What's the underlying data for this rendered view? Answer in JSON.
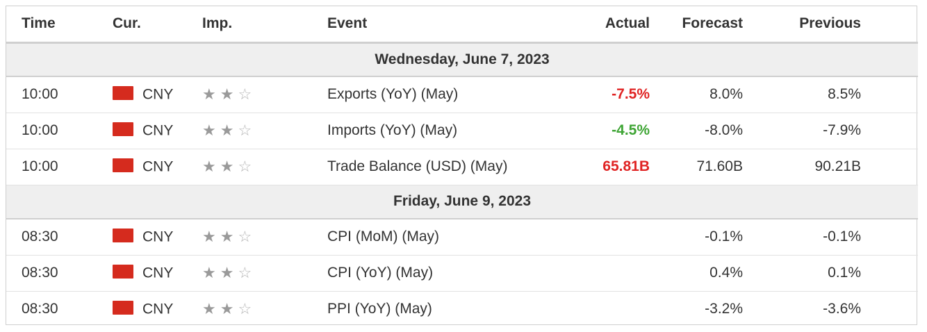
{
  "headers": {
    "time": "Time",
    "cur": "Cur.",
    "imp": "Imp.",
    "event": "Event",
    "actual": "Actual",
    "forecast": "Forecast",
    "previous": "Previous"
  },
  "groups": [
    {
      "date": "Wednesday, June 7, 2023",
      "events": [
        {
          "time": "10:00",
          "currency": "CNY",
          "importance": 2,
          "event": "Exports (YoY) (May)",
          "actual": "-7.5%",
          "actual_status": "negative",
          "forecast": "8.0%",
          "previous": "8.5%"
        },
        {
          "time": "10:00",
          "currency": "CNY",
          "importance": 2,
          "event": "Imports (YoY) (May)",
          "actual": "-4.5%",
          "actual_status": "positive",
          "forecast": "-8.0%",
          "previous": "-7.9%"
        },
        {
          "time": "10:00",
          "currency": "CNY",
          "importance": 2,
          "event": "Trade Balance (USD) (May)",
          "actual": "65.81B",
          "actual_status": "negative",
          "forecast": "71.60B",
          "previous": "90.21B"
        }
      ]
    },
    {
      "date": "Friday, June 9, 2023",
      "events": [
        {
          "time": "08:30",
          "currency": "CNY",
          "importance": 2,
          "event": "CPI (MoM) (May)",
          "actual": "",
          "actual_status": "none",
          "forecast": "-0.1%",
          "previous": "-0.1%"
        },
        {
          "time": "08:30",
          "currency": "CNY",
          "importance": 2,
          "event": "CPI (YoY) (May)",
          "actual": "",
          "actual_status": "none",
          "forecast": "0.4%",
          "previous": "0.1%"
        },
        {
          "time": "08:30",
          "currency": "CNY",
          "importance": 2,
          "event": "PPI (YoY) (May)",
          "actual": "",
          "actual_status": "none",
          "forecast": "-3.2%",
          "previous": "-3.6%"
        }
      ]
    }
  ],
  "colors": {
    "negative": "#e02424",
    "positive": "#3fa535",
    "flag_cny": "#d52b1e"
  },
  "icons": {
    "flag": "china-flag-icon",
    "star_full": "star-filled-icon",
    "star_empty": "star-outline-icon"
  }
}
